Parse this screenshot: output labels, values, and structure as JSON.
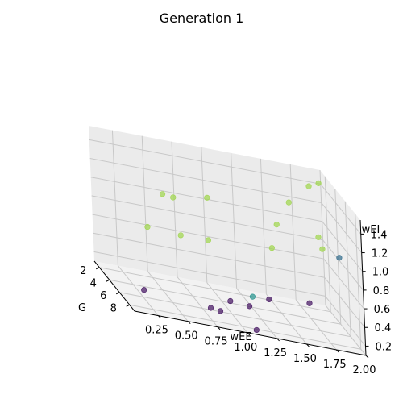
{
  "chart_data": {
    "type": "scatter",
    "projection": "3d",
    "title": "Generation 1",
    "xlabel": "wEE",
    "ylabel": "G",
    "zlabel": "wEI",
    "xticks": [
      "0.25",
      "0.50",
      "0.75",
      "1.00",
      "1.25",
      "1.50",
      "1.75",
      "2.00"
    ],
    "yticks": [
      "2",
      "4",
      "6",
      "8"
    ],
    "zticks": [
      "0.2",
      "0.4",
      "0.6",
      "0.8",
      "1.0",
      "1.2",
      "1.4"
    ],
    "xlim": [
      0.05,
      2.0
    ],
    "ylim": [
      1,
      9
    ],
    "zlim": [
      0.1,
      1.55
    ],
    "grid": true,
    "colormap": "viridis",
    "points": [
      {
        "x": 1.5,
        "y": 6.5,
        "z": 1.45,
        "c": 0.85
      },
      {
        "x": 0.6,
        "y": 4.5,
        "z": 1.15,
        "c": 0.85
      },
      {
        "x": 0.45,
        "y": 6.0,
        "z": 1.25,
        "c": 0.85
      },
      {
        "x": 0.9,
        "y": 4.2,
        "z": 1.2,
        "c": 0.85
      },
      {
        "x": 0.25,
        "y": 7.5,
        "z": 0.95,
        "c": 0.85
      },
      {
        "x": 0.55,
        "y": 7.0,
        "z": 0.9,
        "c": 0.85
      },
      {
        "x": 0.75,
        "y": 7.8,
        "z": 0.95,
        "c": 0.85
      },
      {
        "x": 1.3,
        "y": 7.5,
        "z": 0.98,
        "c": 0.85
      },
      {
        "x": 1.45,
        "y": 5.0,
        "z": 1.1,
        "c": 0.85
      },
      {
        "x": 1.8,
        "y": 5.0,
        "z": 1.05,
        "c": 0.85
      },
      {
        "x": 1.85,
        "y": 4.5,
        "z": 0.9,
        "c": 0.85
      },
      {
        "x": 1.95,
        "y": 1.8,
        "z": 1.45,
        "c": 0.85
      },
      {
        "x": 1.85,
        "y": 2.2,
        "z": 1.42,
        "c": 0.85
      },
      {
        "x": 1.95,
        "y": 5.5,
        "z": 0.9,
        "c": 0.35
      },
      {
        "x": 1.2,
        "y": 5.5,
        "z": 0.3,
        "c": 0.5
      },
      {
        "x": 0.3,
        "y": 5.0,
        "z": 0.12,
        "c": 0.05
      },
      {
        "x": 0.8,
        "y": 6.5,
        "z": 0.15,
        "c": 0.05
      },
      {
        "x": 0.8,
        "y": 8.5,
        "z": 0.25,
        "c": 0.05
      },
      {
        "x": 1.1,
        "y": 8.5,
        "z": 0.12,
        "c": 0.05
      },
      {
        "x": 1.15,
        "y": 6.0,
        "z": 0.22,
        "c": 0.05
      },
      {
        "x": 1.05,
        "y": 4.5,
        "z": 0.15,
        "c": 0.05
      },
      {
        "x": 1.4,
        "y": 4.0,
        "z": 0.22,
        "c": 0.05
      },
      {
        "x": 1.75,
        "y": 3.8,
        "z": 0.25,
        "c": 0.05
      }
    ]
  }
}
